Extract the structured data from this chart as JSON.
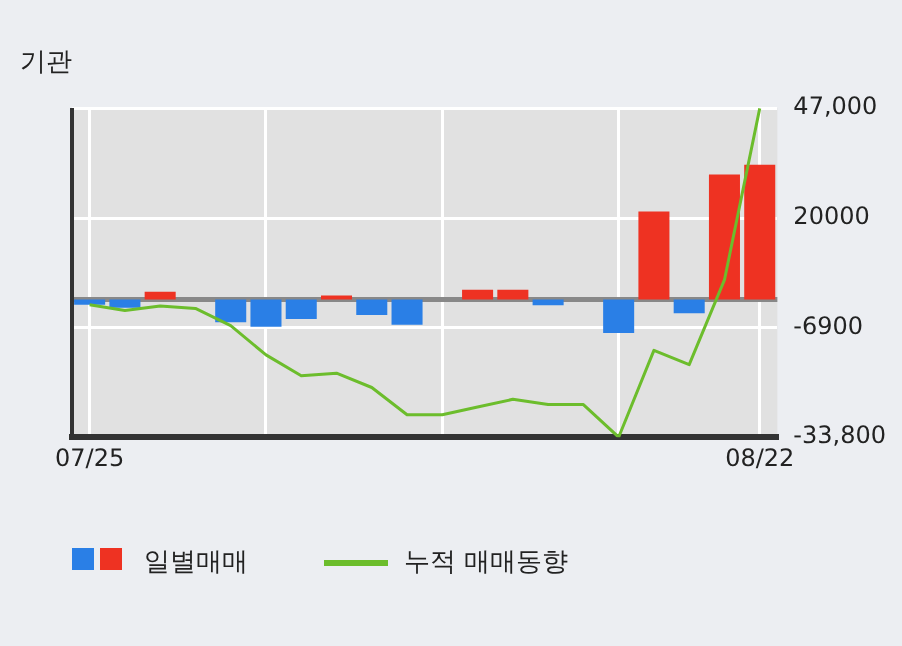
{
  "chart_data": {
    "type": "bar",
    "title": "기관",
    "categories": [
      "07/25",
      null,
      null,
      null,
      null,
      null,
      null,
      null,
      null,
      null,
      null,
      null,
      null,
      null,
      null,
      null,
      null,
      null,
      null,
      "08/22"
    ],
    "series": [
      {
        "name": "일별매매",
        "colors": [
          "#2a7fe6",
          "#2a7fe6",
          "#ee3222",
          "#ee3222",
          "#2a7fe6",
          "#2a7fe6",
          "#2a7fe6",
          "#ee3222",
          "#2a7fe6",
          "#2a7fe6",
          "#ee3222",
          "#ee3222",
          "#ee3222",
          "#2a7fe6",
          "#ee3222",
          "#2a7fe6",
          "#ee3222",
          "#2a7fe6",
          "#ee3222",
          "#ee3222"
        ],
        "values": [
          -1300,
          -2000,
          1900,
          0,
          -5600,
          -6700,
          -4800,
          1000,
          -3800,
          -6200,
          0,
          2400,
          2400,
          -1400,
          0,
          -8200,
          21600,
          -3400,
          30700,
          33100
        ]
      },
      {
        "name": "누적 매매동향",
        "type": "line",
        "color": "#6cbd2c",
        "values": [
          -1300,
          -2700,
          -1600,
          -2200,
          -6400,
          -13600,
          -18700,
          -18100,
          -21600,
          -28300,
          -28300,
          -26400,
          -24500,
          -25800,
          -25800,
          -33800,
          -12500,
          -16000,
          4800,
          46900
        ]
      }
    ],
    "ylim": [
      -33800,
      47000
    ],
    "yticks": [
      {
        "value": 47000,
        "label": "47,000"
      },
      20000,
      {
        "value": -6900,
        "label": "-6900"
      },
      {
        "value": -33800,
        "label": "-33,800"
      }
    ],
    "grid": true,
    "legend": "bottom",
    "marker": "none",
    "line_style": "solid"
  }
}
